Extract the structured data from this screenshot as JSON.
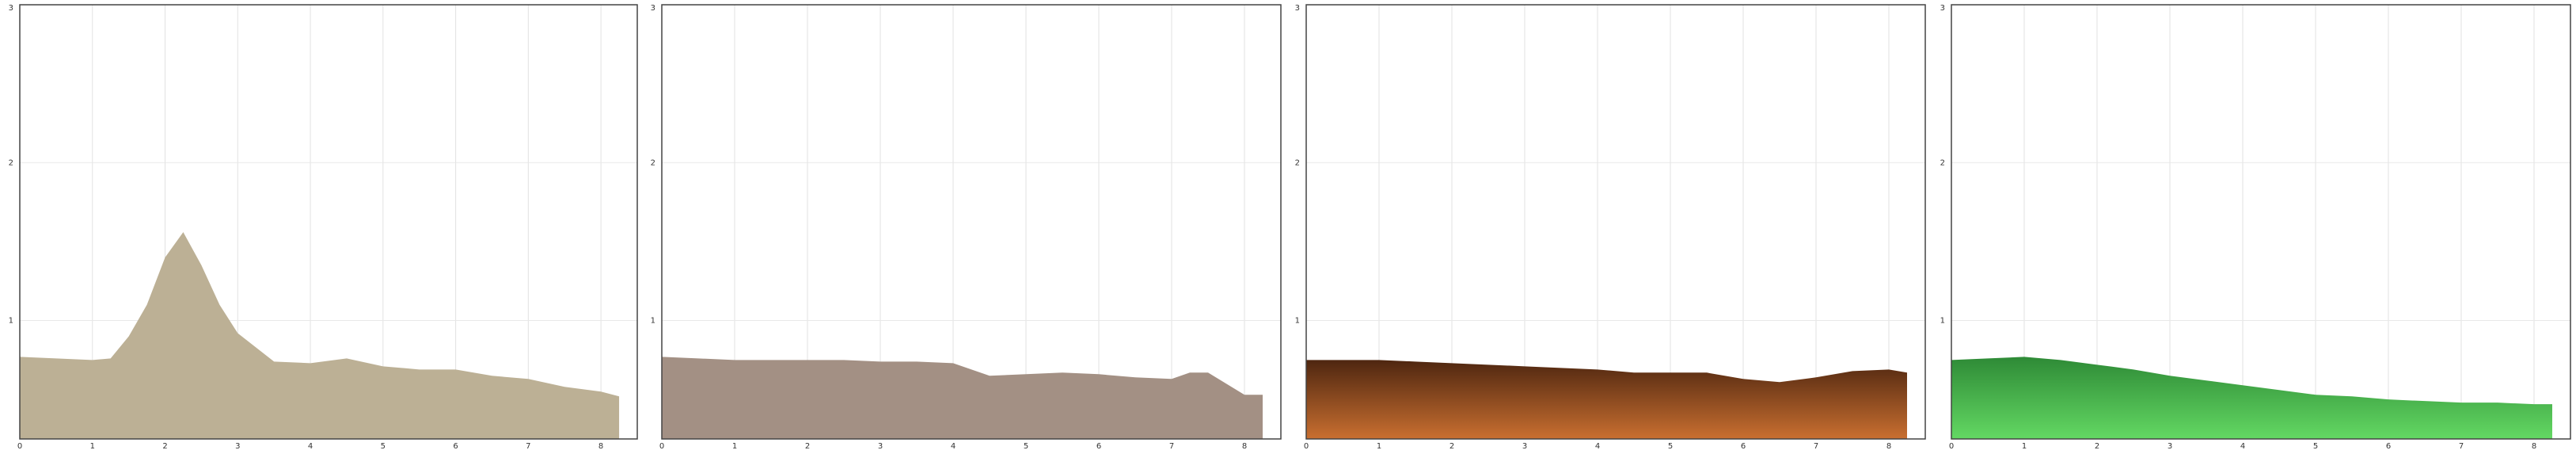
{
  "chart_data": [
    {
      "type": "area",
      "color": "#bcb095",
      "xlim": [
        0,
        8.5
      ],
      "ylim": [
        0.25,
        3
      ],
      "xticks": [
        0,
        1,
        2,
        3,
        4,
        5,
        6,
        7,
        8
      ],
      "yticks": [
        1,
        2,
        3
      ],
      "grid": true,
      "x": [
        0,
        0.5,
        1,
        1.25,
        1.5,
        1.75,
        2,
        2.25,
        2.5,
        2.75,
        3,
        3.5,
        4,
        4.5,
        5,
        5.5,
        6,
        6.5,
        7,
        7.5,
        8,
        8.25
      ],
      "values": [
        0.77,
        0.76,
        0.75,
        0.76,
        0.9,
        1.1,
        1.4,
        1.56,
        1.35,
        1.1,
        0.92,
        0.74,
        0.73,
        0.76,
        0.71,
        0.69,
        0.69,
        0.65,
        0.63,
        0.58,
        0.55,
        0.52
      ]
    },
    {
      "type": "area",
      "color": "#a39084",
      "xlim": [
        0,
        8.5
      ],
      "ylim": [
        0.25,
        3
      ],
      "xticks": [
        0,
        1,
        2,
        3,
        4,
        5,
        6,
        7,
        8
      ],
      "yticks": [
        1,
        2,
        3
      ],
      "grid": true,
      "x": [
        0,
        0.5,
        1,
        1.5,
        2,
        2.5,
        3,
        3.5,
        4,
        4.5,
        5,
        5.5,
        6,
        6.5,
        7,
        7.25,
        7.5,
        7.75,
        8,
        8.25
      ],
      "values": [
        0.77,
        0.76,
        0.75,
        0.75,
        0.75,
        0.75,
        0.74,
        0.74,
        0.73,
        0.65,
        0.66,
        0.67,
        0.66,
        0.64,
        0.63,
        0.67,
        0.67,
        0.6,
        0.53,
        0.53
      ]
    },
    {
      "type": "area",
      "color": "#8a4a20",
      "gradient": [
        "#4e2610",
        "#c96f30"
      ],
      "xlim": [
        0,
        8.5
      ],
      "ylim": [
        0.25,
        3
      ],
      "xticks": [
        0,
        1,
        2,
        3,
        4,
        5,
        6,
        7,
        8
      ],
      "yticks": [
        1,
        2,
        3
      ],
      "grid": true,
      "x": [
        0,
        0.5,
        1,
        1.5,
        2,
        2.5,
        3,
        3.5,
        4,
        4.5,
        5,
        5.5,
        6,
        6.5,
        7,
        7.5,
        8,
        8.25
      ],
      "values": [
        0.75,
        0.75,
        0.75,
        0.74,
        0.73,
        0.72,
        0.71,
        0.7,
        0.69,
        0.67,
        0.67,
        0.67,
        0.63,
        0.61,
        0.64,
        0.68,
        0.69,
        0.67
      ]
    },
    {
      "type": "area",
      "color": "#45b24a",
      "gradient": [
        "#2e8a36",
        "#63d863"
      ],
      "xlim": [
        0,
        8.5
      ],
      "ylim": [
        0.25,
        3
      ],
      "xticks": [
        0,
        1,
        2,
        3,
        4,
        5,
        6,
        7,
        8
      ],
      "yticks": [
        1,
        2,
        3
      ],
      "grid": true,
      "x": [
        0,
        0.5,
        1,
        1.5,
        2,
        2.5,
        3,
        3.5,
        4,
        4.5,
        5,
        5.5,
        6,
        6.5,
        7,
        7.5,
        8,
        8.25
      ],
      "values": [
        0.75,
        0.76,
        0.77,
        0.75,
        0.72,
        0.69,
        0.65,
        0.62,
        0.59,
        0.56,
        0.53,
        0.52,
        0.5,
        0.49,
        0.48,
        0.48,
        0.47,
        0.47
      ]
    }
  ]
}
